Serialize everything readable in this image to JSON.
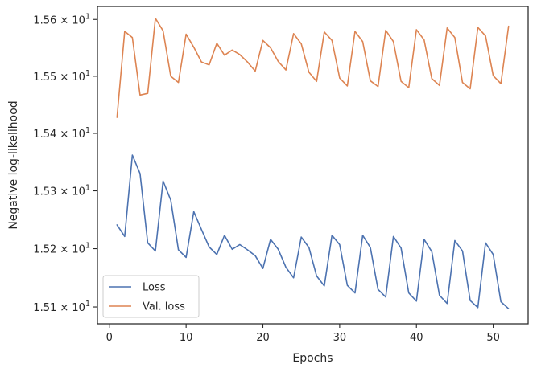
{
  "chart_data": {
    "type": "line",
    "title": "",
    "xlabel": "Epochs",
    "ylabel": "Negative log-likelihood",
    "xlim": [
      -1.55,
      54.55
    ],
    "ylim": [
      15.0712,
      15.6231
    ],
    "yscale": "log",
    "xticks": [
      0,
      10,
      20,
      30,
      40,
      50
    ],
    "yticks": [
      {
        "value": 15.1,
        "mantissa": "1.51",
        "base": "10",
        "exp": "1"
      },
      {
        "value": 15.2,
        "mantissa": "1.52",
        "base": "10",
        "exp": "1"
      },
      {
        "value": 15.3,
        "mantissa": "1.53",
        "base": "10",
        "exp": "1"
      },
      {
        "value": 15.4,
        "mantissa": "1.54",
        "base": "10",
        "exp": "1"
      },
      {
        "value": 15.5,
        "mantissa": "1.55",
        "base": "10",
        "exp": "1"
      },
      {
        "value": 15.6,
        "mantissa": "1.56",
        "base": "10",
        "exp": "1"
      }
    ],
    "grid": false,
    "legend_position": "bottom-left",
    "x": [
      1,
      2,
      3,
      4,
      5,
      6,
      7,
      8,
      9,
      10,
      11,
      12,
      13,
      14,
      15,
      16,
      17,
      18,
      19,
      20,
      21,
      22,
      23,
      24,
      25,
      26,
      27,
      28,
      29,
      30,
      31,
      32,
      33,
      34,
      35,
      36,
      37,
      38,
      39,
      40,
      41,
      42,
      43,
      44,
      45,
      46,
      47,
      48,
      49,
      50,
      51,
      52
    ],
    "series": [
      {
        "name": "Loss",
        "color": "#4c72b0",
        "values": [
          15.241,
          15.221,
          15.362,
          15.33,
          15.21,
          15.196,
          15.317,
          15.284,
          15.198,
          15.185,
          15.264,
          15.233,
          15.203,
          15.19,
          15.223,
          15.199,
          15.207,
          15.198,
          15.188,
          15.166,
          15.216,
          15.199,
          15.168,
          15.15,
          15.22,
          15.202,
          15.153,
          15.136,
          15.223,
          15.207,
          15.137,
          15.124,
          15.223,
          15.202,
          15.13,
          15.117,
          15.221,
          15.201,
          15.124,
          15.11,
          15.216,
          15.195,
          15.12,
          15.106,
          15.214,
          15.196,
          15.111,
          15.099,
          15.21,
          15.19,
          15.109,
          15.097
        ]
      },
      {
        "name": "Val. loss",
        "color": "#dd8452",
        "values": [
          15.428,
          15.579,
          15.568,
          15.467,
          15.47,
          15.602,
          15.58,
          15.5,
          15.489,
          15.574,
          15.551,
          15.525,
          15.52,
          15.558,
          15.537,
          15.546,
          15.538,
          15.525,
          15.509,
          15.563,
          15.55,
          15.526,
          15.511,
          15.575,
          15.557,
          15.507,
          15.491,
          15.578,
          15.563,
          15.497,
          15.483,
          15.579,
          15.561,
          15.492,
          15.482,
          15.581,
          15.561,
          15.491,
          15.48,
          15.582,
          15.564,
          15.496,
          15.484,
          15.585,
          15.568,
          15.489,
          15.478,
          15.586,
          15.571,
          15.501,
          15.487,
          15.588
        ]
      }
    ]
  }
}
